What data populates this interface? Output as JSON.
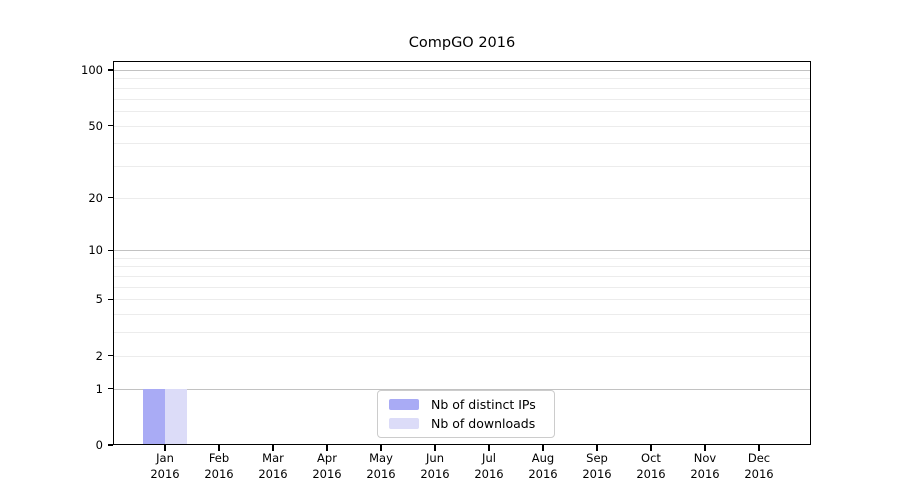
{
  "chart_data": {
    "type": "bar",
    "title": "CompGO 2016",
    "year_label": "2016",
    "categories": [
      "Jan",
      "Feb",
      "Mar",
      "Apr",
      "May",
      "Jun",
      "Jul",
      "Aug",
      "Sep",
      "Oct",
      "Nov",
      "Dec"
    ],
    "series": [
      {
        "name": "Nb of distinct IPs",
        "color": "#a9abf5",
        "values": [
          1,
          0,
          0,
          0,
          0,
          0,
          0,
          0,
          0,
          0,
          0,
          0
        ]
      },
      {
        "name": "Nb of downloads",
        "color": "#dcdcf8",
        "values": [
          1,
          0,
          0,
          0,
          0,
          0,
          0,
          0,
          0,
          0,
          0,
          0
        ]
      }
    ],
    "yscale": "log1p",
    "ylim": [
      0,
      111
    ],
    "yticks": [
      0,
      1,
      2,
      5,
      10,
      20,
      50,
      100
    ],
    "major_gridlines": [
      1,
      10,
      100
    ],
    "minor_gridlines": [
      2,
      3,
      4,
      5,
      6,
      7,
      8,
      9,
      20,
      30,
      40,
      50,
      60,
      70,
      80,
      90
    ],
    "legend_position": "bottom-center",
    "grid": true,
    "colors": {
      "axis": "#000000",
      "text": "#000000",
      "grid_major": "#c2c2c2",
      "grid_minor": "#ececec",
      "legend_border": "#cccccc",
      "background": "#ffffff"
    }
  }
}
